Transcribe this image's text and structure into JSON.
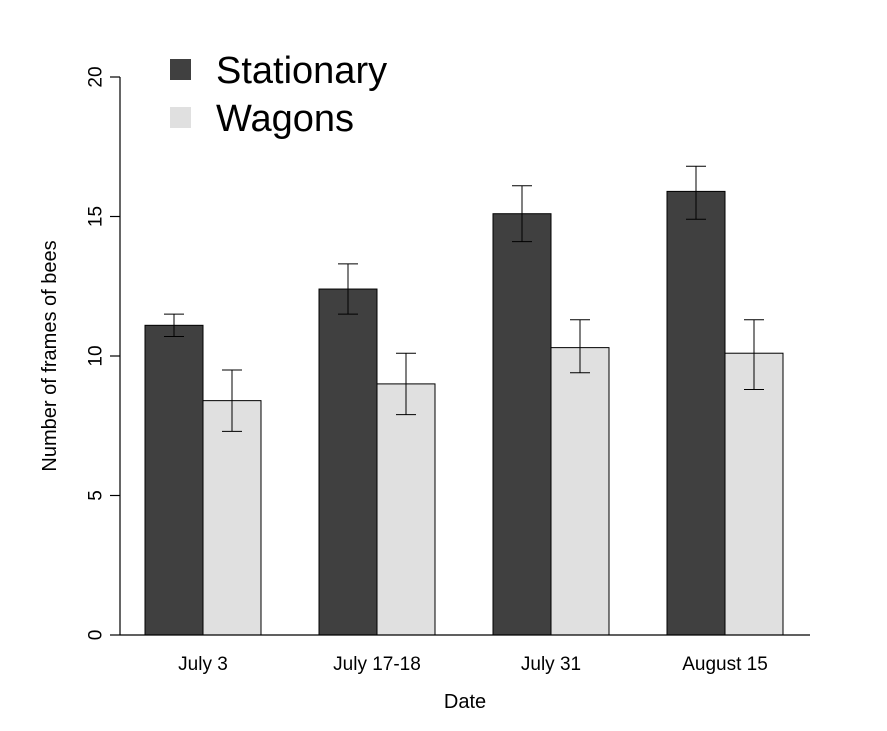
{
  "chart_data": {
    "type": "bar",
    "xlabel": "Date",
    "ylabel": "Number of frames of bees",
    "categories": [
      "July 3",
      "July 17-18",
      "July 31",
      "August 15"
    ],
    "ylim": [
      0,
      20
    ],
    "yticks": [
      0,
      5,
      10,
      15,
      20
    ],
    "legend_position": "top-left",
    "grid": false,
    "series": [
      {
        "name": "Stationary",
        "color": "#404040",
        "values": [
          11.1,
          12.4,
          15.1,
          15.9
        ],
        "err_low": [
          10.7,
          11.5,
          14.1,
          14.9
        ],
        "err_high": [
          11.5,
          13.3,
          16.1,
          16.8
        ]
      },
      {
        "name": "Wagons",
        "color": "#e0e0e0",
        "values": [
          8.4,
          9.0,
          10.3,
          10.1
        ],
        "err_low": [
          7.3,
          7.9,
          9.4,
          8.8
        ],
        "err_high": [
          9.5,
          10.1,
          11.3,
          11.3
        ]
      }
    ]
  }
}
